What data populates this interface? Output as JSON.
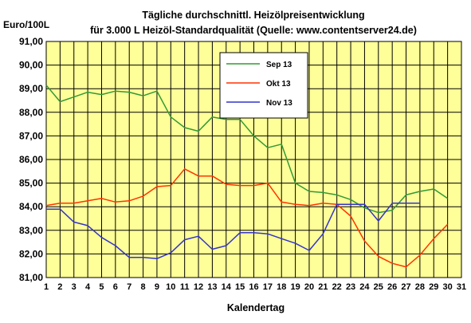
{
  "chart_data": {
    "type": "line",
    "title_line1": "Tägliche durchschnittl. Heizölpreisentwicklung",
    "title_line2": "für 3.000 L Heizöl-Standardqualität (Quelle: www.contentserver24.de)",
    "ylabel": "Euro/100L",
    "xlabel": "Kalendertag",
    "ylim": [
      81,
      91
    ],
    "yticks": [
      "81,00",
      "82,00",
      "83,00",
      "84,00",
      "85,00",
      "86,00",
      "87,00",
      "88,00",
      "89,00",
      "90,00",
      "91,00"
    ],
    "x": [
      1,
      2,
      3,
      4,
      5,
      6,
      7,
      8,
      9,
      10,
      11,
      12,
      13,
      14,
      15,
      16,
      17,
      18,
      19,
      20,
      21,
      22,
      23,
      24,
      25,
      26,
      27,
      28,
      29,
      30,
      31
    ],
    "grid": true,
    "legend_position": "top-center",
    "plot_background": "#ffff99",
    "series": [
      {
        "name": "Sep 13",
        "color": "#339933",
        "x": [
          1,
          2,
          3,
          4,
          5,
          6,
          7,
          8,
          9,
          10,
          11,
          12,
          13,
          14,
          15,
          16,
          17,
          18,
          19,
          20,
          21,
          22,
          23,
          24,
          25,
          26,
          27,
          28,
          29,
          30
        ],
        "values": [
          89.15,
          88.45,
          88.65,
          88.85,
          88.75,
          88.9,
          88.85,
          88.7,
          88.9,
          87.8,
          87.35,
          87.2,
          87.8,
          87.7,
          87.7,
          87.0,
          86.5,
          86.65,
          85.0,
          84.65,
          84.6,
          84.5,
          84.3,
          83.95,
          83.75,
          83.85,
          84.5,
          84.65,
          84.75,
          84.35
        ]
      },
      {
        "name": "Okt 13",
        "color": "#ff3300",
        "x": [
          1,
          2,
          3,
          4,
          5,
          6,
          7,
          8,
          9,
          10,
          11,
          12,
          13,
          14,
          15,
          16,
          17,
          18,
          19,
          20,
          21,
          22,
          23,
          24,
          25,
          26,
          27,
          28,
          29,
          30
        ],
        "values": [
          84.05,
          84.15,
          84.15,
          84.25,
          84.35,
          84.2,
          84.25,
          84.45,
          84.85,
          84.9,
          85.6,
          85.3,
          85.3,
          84.95,
          84.9,
          84.9,
          85.0,
          84.2,
          84.1,
          84.05,
          84.15,
          84.1,
          83.6,
          82.55,
          81.9,
          81.6,
          81.45,
          81.95,
          82.65,
          83.25
        ]
      },
      {
        "name": "Nov 13",
        "color": "#3333cc",
        "x": [
          1,
          2,
          3,
          4,
          5,
          6,
          7,
          8,
          9,
          10,
          11,
          12,
          13,
          14,
          15,
          16,
          17,
          18,
          19,
          20,
          21,
          22,
          23,
          24,
          25,
          26,
          27,
          28
        ],
        "values": [
          83.9,
          83.9,
          83.35,
          83.2,
          82.7,
          82.35,
          81.85,
          81.85,
          81.8,
          82.05,
          82.6,
          82.75,
          82.2,
          82.35,
          82.9,
          82.9,
          82.85,
          82.65,
          82.45,
          82.15,
          82.85,
          84.1,
          84.1,
          84.1,
          83.4,
          84.15,
          84.15,
          84.15
        ]
      }
    ]
  }
}
